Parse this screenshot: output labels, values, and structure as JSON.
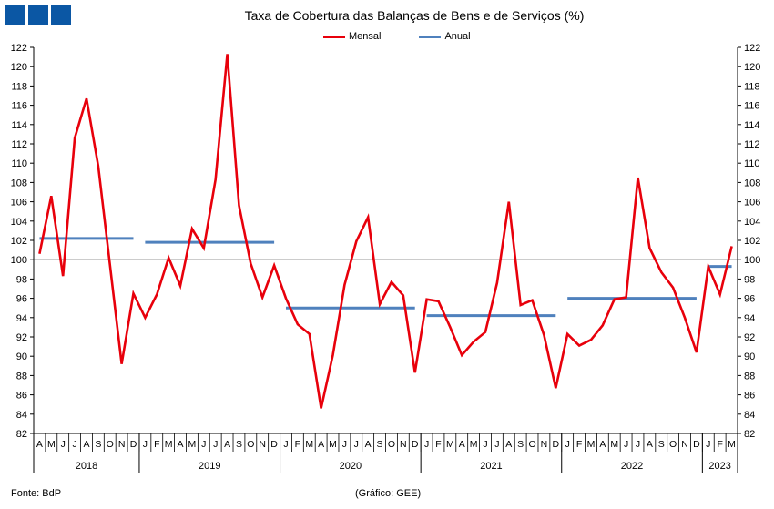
{
  "logo": {
    "name": "gee-logo"
  },
  "footer": {
    "source": "Fonte: BdP",
    "credit": "(Gráfico: GEE)"
  },
  "chart_data": {
    "type": "line",
    "title": "Taxa de Cobertura das Balanças de Bens e de Serviços (%)",
    "xlabel": "",
    "ylabel": "",
    "ylim": [
      82,
      122
    ],
    "yticks": [
      82,
      84,
      86,
      88,
      90,
      92,
      94,
      96,
      98,
      100,
      102,
      104,
      106,
      108,
      110,
      112,
      114,
      116,
      118,
      120,
      122
    ],
    "reference_line": 100,
    "legend_position": "top-center",
    "grid": false,
    "x": [
      "A",
      "M",
      "J",
      "J",
      "A",
      "S",
      "O",
      "N",
      "D",
      "J",
      "F",
      "M",
      "A",
      "M",
      "J",
      "J",
      "A",
      "S",
      "O",
      "N",
      "D",
      "J",
      "F",
      "M",
      "A",
      "M",
      "J",
      "J",
      "A",
      "S",
      "O",
      "N",
      "D",
      "J",
      "F",
      "M",
      "A",
      "M",
      "J",
      "J",
      "A",
      "S",
      "O",
      "N",
      "D",
      "J",
      "F",
      "M",
      "A",
      "M",
      "J",
      "J",
      "A",
      "S",
      "O",
      "N",
      "D",
      "J",
      "F",
      "M"
    ],
    "year_labels": [
      "2018",
      "2019",
      "2020",
      "2021",
      "2022",
      "2023"
    ],
    "year_start_index": [
      0,
      9,
      21,
      33,
      45,
      57
    ],
    "series": [
      {
        "name": "Mensal",
        "color": "#e8000b",
        "values": [
          100.6,
          106.6,
          98.3,
          112.6,
          116.7,
          109.7,
          99.5,
          89.2,
          96.5,
          94.0,
          96.4,
          100.2,
          97.3,
          103.2,
          101.2,
          108.3,
          121.3,
          105.6,
          99.6,
          96.1,
          99.4,
          96.0,
          93.3,
          92.3,
          84.6,
          90.1,
          97.4,
          101.9,
          104.4,
          95.4,
          97.7,
          96.3,
          88.3,
          95.9,
          95.7,
          93.0,
          90.1,
          91.5,
          92.5,
          97.6,
          106.0,
          95.3,
          95.8,
          92.2,
          86.7,
          92.3,
          91.1,
          91.7,
          93.2,
          95.9,
          96.1,
          108.5,
          101.2,
          98.7,
          97.1,
          94.0,
          90.4,
          99.3,
          96.4,
          101.4
        ]
      },
      {
        "name": "Anual",
        "color": "#4f81bd",
        "segments": [
          {
            "from_index": 0,
            "to_index": 8,
            "value": 102.2
          },
          {
            "from_index": 9,
            "to_index": 20,
            "value": 101.8
          },
          {
            "from_index": 21,
            "to_index": 32,
            "value": 95.0
          },
          {
            "from_index": 33,
            "to_index": 44,
            "value": 94.2
          },
          {
            "from_index": 45,
            "to_index": 56,
            "value": 96.0
          },
          {
            "from_index": 57,
            "to_index": 59,
            "value": 99.3
          }
        ]
      }
    ]
  }
}
